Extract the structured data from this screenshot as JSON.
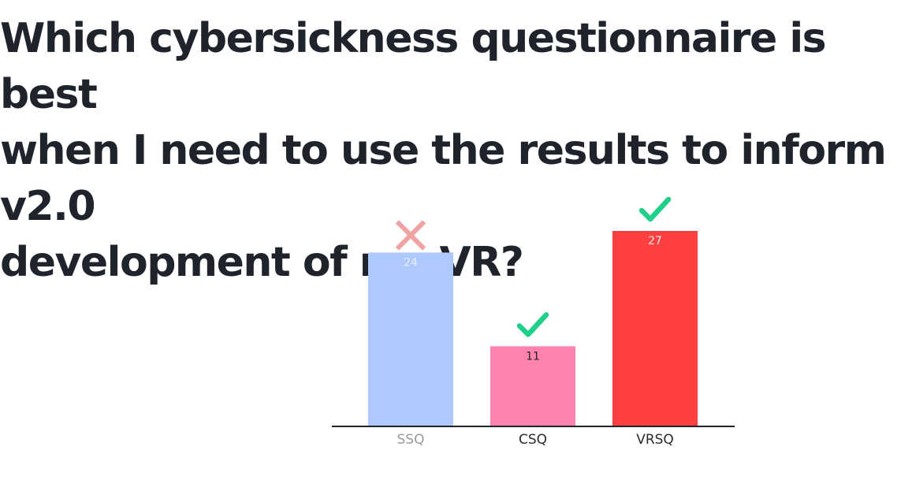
{
  "question": {
    "line1": "Which cybersickness questionnaire is best",
    "line2": "when I need to use the results to inform v2.0",
    "line3": "development of my VR?"
  },
  "chart_data": {
    "type": "bar",
    "categories": [
      "SSQ",
      "CSQ",
      "VRSQ"
    ],
    "values": [
      24,
      11,
      27
    ],
    "ylim": [
      0,
      27
    ],
    "grid": false,
    "legend": "none",
    "bar_colors": [
      "#adc9fd",
      "#ff83ab",
      "#ff4040"
    ],
    "value_label_colors": [
      "#e8f0ff",
      "#1f232b",
      "#ffe5e5"
    ],
    "tick_label_colors": [
      "#9a9a9a",
      "#2b2b2b",
      "#2b2b2b"
    ],
    "markers": [
      {
        "category": "SSQ",
        "icon": "cross-icon",
        "color": "#f0a3a3"
      },
      {
        "category": "CSQ",
        "icon": "check-icon",
        "color": "#1fd08a"
      },
      {
        "category": "VRSQ",
        "icon": "check-icon",
        "color": "#1fd08a"
      }
    ],
    "axis_color": "#1f232b"
  }
}
